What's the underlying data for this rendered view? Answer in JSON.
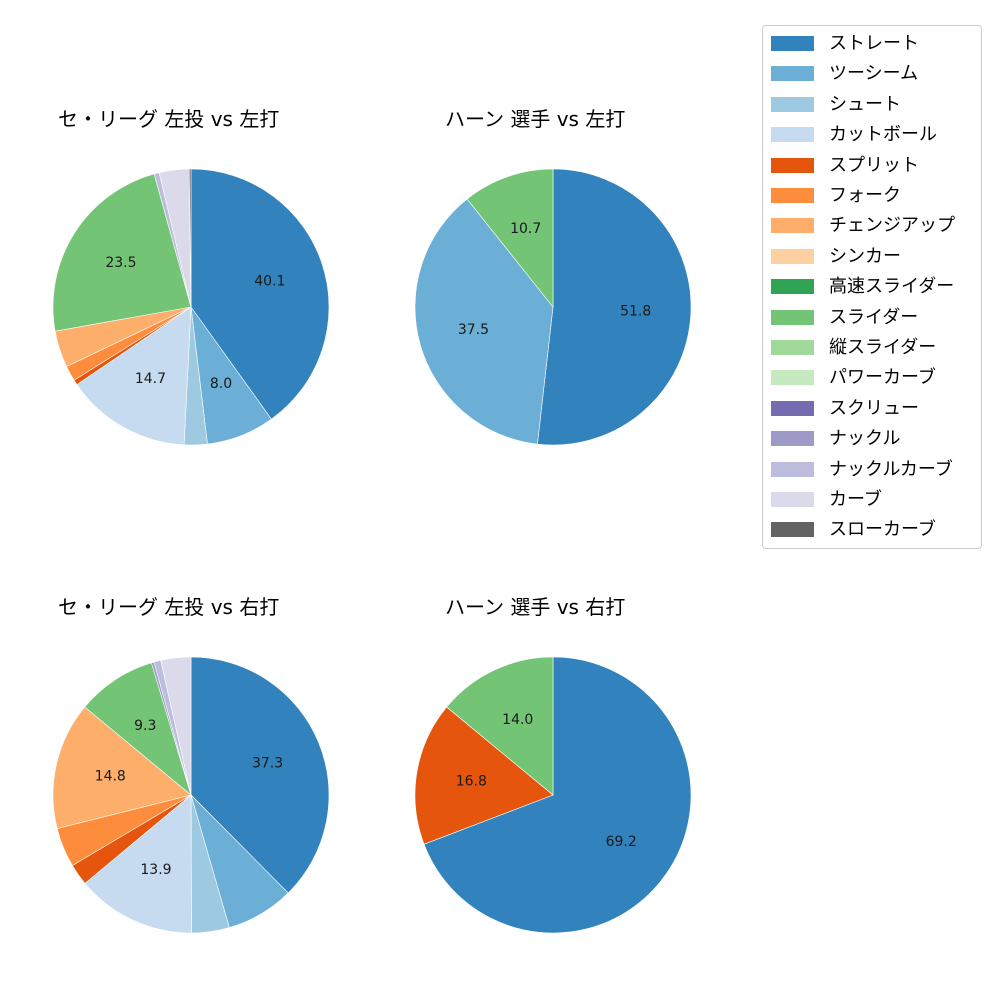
{
  "legend": {
    "items": [
      {
        "label": "ストレート",
        "color": "#3182bd"
      },
      {
        "label": "ツーシーム",
        "color": "#6baed6"
      },
      {
        "label": "シュート",
        "color": "#9ecae1"
      },
      {
        "label": "カットボール",
        "color": "#c6dbef"
      },
      {
        "label": "スプリット",
        "color": "#e6550d"
      },
      {
        "label": "フォーク",
        "color": "#fd8d3c"
      },
      {
        "label": "チェンジアップ",
        "color": "#fdae6b"
      },
      {
        "label": "シンカー",
        "color": "#fdd0a2"
      },
      {
        "label": "高速スライダー",
        "color": "#31a354"
      },
      {
        "label": "スライダー",
        "color": "#74c476"
      },
      {
        "label": "縦スライダー",
        "color": "#a1d99b"
      },
      {
        "label": "パワーカーブ",
        "color": "#c7e9c0"
      },
      {
        "label": "スクリュー",
        "color": "#756bb1"
      },
      {
        "label": "ナックル",
        "color": "#9e9ac8"
      },
      {
        "label": "ナックルカーブ",
        "color": "#bcbddc"
      },
      {
        "label": "カーブ",
        "color": "#dadaeb"
      },
      {
        "label": "スローカーブ",
        "color": "#636363"
      }
    ]
  },
  "chart_data": [
    {
      "type": "pie",
      "title": "セ・リーグ 左投 vs 左打",
      "position": "top-left",
      "start_angle": 90,
      "direction": "clockwise",
      "categories": [
        "ストレート",
        "ツーシーム",
        "シュート",
        "カットボール",
        "スプリット",
        "フォーク",
        "チェンジアップ",
        "スライダー",
        "ナックルカーブ",
        "カーブ",
        "スローカーブ"
      ],
      "values": [
        40.1,
        8.0,
        2.7,
        14.7,
        0.6,
        1.8,
        4.3,
        23.5,
        0.6,
        3.5,
        0.2
      ],
      "labels_shown": [
        "40.1",
        "8.0",
        "",
        "14.7",
        "",
        "",
        "",
        "23.5",
        "",
        "",
        ""
      ]
    },
    {
      "type": "pie",
      "title": "ハーン 選手 vs 左打",
      "position": "top-right",
      "start_angle": 90,
      "direction": "clockwise",
      "categories": [
        "ストレート",
        "ツーシーム",
        "スライダー"
      ],
      "values": [
        51.8,
        37.5,
        10.7
      ],
      "labels_shown": [
        "51.8",
        "37.5",
        "10.7"
      ]
    },
    {
      "type": "pie",
      "title": "セ・リーグ 左投 vs 右打",
      "position": "bottom-left",
      "start_angle": 90,
      "direction": "clockwise",
      "categories": [
        "ストレート",
        "ツーシーム",
        "シュート",
        "カットボール",
        "スプリット",
        "フォーク",
        "チェンジアップ",
        "スライダー",
        "ナックル",
        "ナックルカーブ",
        "カーブ"
      ],
      "values": [
        37.3,
        7.9,
        4.4,
        13.9,
        2.5,
        4.6,
        14.8,
        9.3,
        0.3,
        0.8,
        3.5
      ],
      "labels_shown": [
        "37.3",
        "",
        "",
        "13.9",
        "",
        "",
        "14.8",
        "9.3",
        "",
        "",
        ""
      ]
    },
    {
      "type": "pie",
      "title": "ハーン 選手 vs 右打",
      "position": "bottom-right",
      "start_angle": 90,
      "direction": "clockwise",
      "categories": [
        "ストレート",
        "スプリット",
        "スライダー"
      ],
      "values": [
        69.2,
        16.8,
        14.0
      ],
      "labels_shown": [
        "69.2",
        "16.8",
        "14.0"
      ]
    }
  ]
}
